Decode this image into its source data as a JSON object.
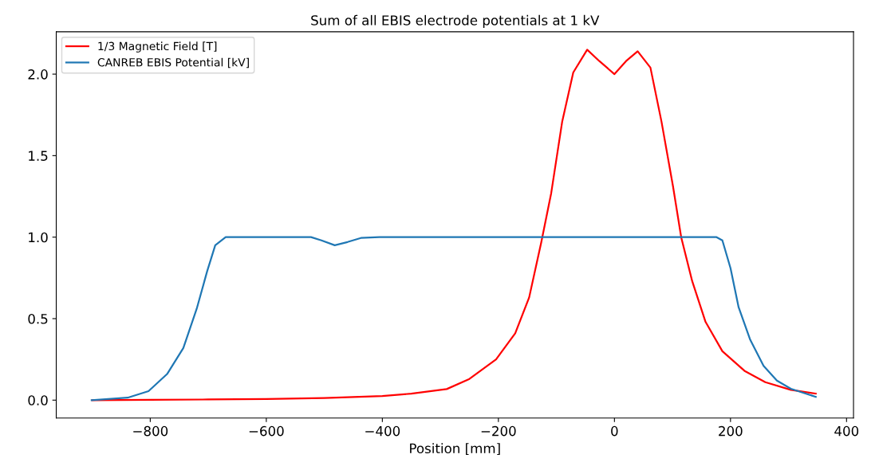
{
  "chart_data": {
    "type": "line",
    "title": "Sum of all EBIS electrode potentials at 1 kV",
    "xlabel": "Position [mm]",
    "xlim": [
      -962,
      412
    ],
    "xticks": [
      {
        "value": -800,
        "label": "−800"
      },
      {
        "value": -600,
        "label": "−600"
      },
      {
        "value": -400,
        "label": "−400"
      },
      {
        "value": -200,
        "label": "−200"
      },
      0,
      200,
      400
    ],
    "ylim": [
      -0.11,
      2.26
    ],
    "yticks": [
      {
        "value": 0,
        "label": "0.0"
      },
      {
        "value": 0.5,
        "label": "0.5"
      },
      {
        "value": 1,
        "label": "1.0"
      },
      {
        "value": 1.5,
        "label": "1.5"
      },
      {
        "value": 2,
        "label": "2.0"
      }
    ],
    "grid": false,
    "legend": "top left",
    "marker": "none",
    "line_style": "solid",
    "series": [
      {
        "name": "1/3 Magnetic Field [T]",
        "color": "#ff0000",
        "x": [
          -900,
          -800,
          -700,
          -600,
          -500,
          -400,
          -350,
          -289,
          -250,
          -204,
          -171,
          -147,
          -126,
          -109,
          -90,
          -71,
          -47,
          -26,
          0,
          20,
          40,
          62,
          81,
          101,
          115,
          134,
          157,
          186,
          224,
          260,
          304,
          347
        ],
        "values": [
          0,
          0.002,
          0.004,
          0.007,
          0.013,
          0.025,
          0.04,
          0.068,
          0.13,
          0.25,
          0.41,
          0.63,
          0.97,
          1.27,
          1.71,
          2.01,
          2.15,
          2.08,
          2.0,
          2.08,
          2.14,
          2.04,
          1.71,
          1.31,
          1.0,
          0.73,
          0.48,
          0.3,
          0.18,
          0.11,
          0.063,
          0.04
        ]
      },
      {
        "name": "CANREB EBIS Potential [kV]",
        "color": "#1f77b4",
        "x": [
          -901,
          -839,
          -803,
          -771,
          -743,
          -720,
          -702,
          -688,
          -670,
          -523,
          -505,
          -482,
          -460,
          -437,
          -405,
          -200,
          0,
          176,
          186,
          200,
          214,
          234,
          257,
          280,
          304,
          347
        ],
        "values": [
          0,
          0.015,
          0.055,
          0.16,
          0.32,
          0.56,
          0.79,
          0.95,
          1.0,
          1.0,
          0.98,
          0.95,
          0.97,
          0.995,
          1.0,
          1.0,
          1.0,
          1.0,
          0.98,
          0.81,
          0.57,
          0.37,
          0.21,
          0.12,
          0.07,
          0.02
        ]
      }
    ]
  }
}
